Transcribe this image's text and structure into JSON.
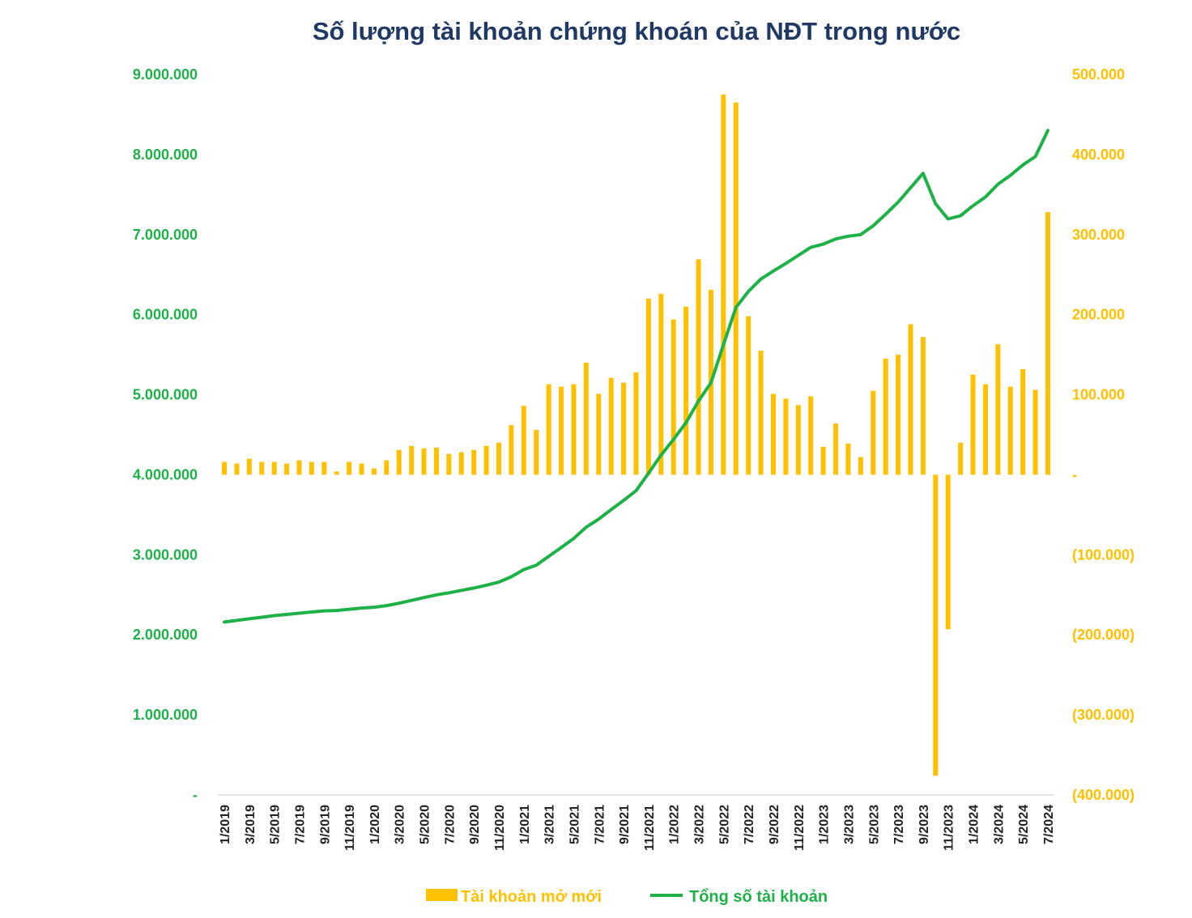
{
  "chart_data": {
    "type": "bar+line",
    "title": "Số lượng tài khoản chứng khoán của NĐT trong nước",
    "colors": {
      "title": "#1f3864",
      "line": "#1db148",
      "bar": "#ffc000"
    },
    "months": [
      "1/2019",
      "2/2019",
      "3/2019",
      "4/2019",
      "5/2019",
      "6/2019",
      "7/2019",
      "8/2019",
      "9/2019",
      "10/2019",
      "11/2019",
      "12/2019",
      "1/2020",
      "2/2020",
      "3/2020",
      "4/2020",
      "5/2020",
      "6/2020",
      "7/2020",
      "8/2020",
      "9/2020",
      "10/2020",
      "11/2020",
      "12/2020",
      "1/2021",
      "2/2021",
      "3/2021",
      "4/2021",
      "5/2021",
      "6/2021",
      "7/2021",
      "8/2021",
      "9/2021",
      "10/2021",
      "11/2021",
      "12/2021",
      "1/2022",
      "2/2022",
      "3/2022",
      "4/2022",
      "5/2022",
      "6/2022",
      "7/2022",
      "8/2022",
      "9/2022",
      "10/2022",
      "11/2022",
      "12/2022",
      "1/2023",
      "2/2023",
      "3/2023",
      "4/2023",
      "5/2023",
      "6/2023",
      "7/2023",
      "8/2023",
      "9/2023",
      "10/2023",
      "11/2023",
      "12/2023",
      "1/2024",
      "2/2024",
      "3/2024",
      "4/2024",
      "5/2024",
      "6/2024",
      "7/2024"
    ],
    "xtick_labels": [
      "1/2019",
      "3/2019",
      "5/2019",
      "7/2019",
      "9/2019",
      "11/2019",
      "1/2020",
      "3/2020",
      "5/2020",
      "7/2020",
      "9/2020",
      "11/2020",
      "1/2021",
      "3/2021",
      "5/2021",
      "7/2021",
      "9/2021",
      "11/2021",
      "1/2022",
      "3/2022",
      "5/2022",
      "7/2022",
      "9/2022",
      "11/2022",
      "1/2023",
      "3/2023",
      "5/2023",
      "7/2023",
      "9/2023",
      "11/2023",
      "1/2024",
      "3/2024",
      "5/2024",
      "7/2024"
    ],
    "series": [
      {
        "name": "Tài khoản mở mới",
        "kind": "bar",
        "axis": "right",
        "values": [
          16000,
          14000,
          20000,
          16000,
          16000,
          14000,
          18000,
          16000,
          16000,
          4000,
          16000,
          14000,
          8000,
          18000,
          31000,
          36000,
          33000,
          34000,
          26000,
          28000,
          31000,
          36000,
          40000,
          62000,
          86000,
          56000,
          113000,
          110000,
          113000,
          140000,
          101000,
          121000,
          115000,
          128000,
          220000,
          226000,
          194000,
          210000,
          269000,
          231000,
          475000,
          465000,
          198000,
          155000,
          101000,
          95000,
          87000,
          98000,
          35000,
          64000,
          39000,
          22000,
          105000,
          145000,
          150000,
          188000,
          172000,
          -376000,
          -193000,
          40000,
          125000,
          113000,
          163000,
          110000,
          132000,
          106000,
          328000
        ]
      },
      {
        "name": "Tổng số tài khoản",
        "kind": "line",
        "axis": "left",
        "values": [
          2160000,
          2180000,
          2200000,
          2220000,
          2240000,
          2255000,
          2270000,
          2285000,
          2300000,
          2305000,
          2320000,
          2335000,
          2345000,
          2365000,
          2395000,
          2430000,
          2465000,
          2500000,
          2525000,
          2555000,
          2585000,
          2620000,
          2660000,
          2725000,
          2815000,
          2870000,
          2980000,
          3090000,
          3205000,
          3345000,
          3445000,
          3565000,
          3680000,
          3800000,
          4020000,
          4245000,
          4440000,
          4650000,
          4920000,
          5150000,
          5625000,
          6090000,
          6290000,
          6445000,
          6545000,
          6640000,
          6740000,
          6840000,
          6880000,
          6945000,
          6980000,
          7000000,
          7110000,
          7255000,
          7405000,
          7585000,
          7765000,
          7385000,
          7195000,
          7235000,
          7360000,
          7470000,
          7630000,
          7740000,
          7870000,
          7975000,
          8300000
        ]
      }
    ],
    "left_axis": {
      "ylim": [
        0,
        9000000
      ],
      "tick_labels": [
        "-",
        "1.000.000",
        "2.000.000",
        "3.000.000",
        "4.000.000",
        "5.000.000",
        "6.000.000",
        "7.000.000",
        "8.000.000",
        "9.000.000"
      ]
    },
    "right_axis": {
      "ylim": [
        -400000,
        500000
      ],
      "tick_labels": [
        "(400.000)",
        "(300.000)",
        "(200.000)",
        "(100.000)",
        "-",
        "100.000",
        "200.000",
        "300.000",
        "400.000",
        "500.000"
      ]
    },
    "legend": [
      {
        "label": "Tài khoản mở mới",
        "kind": "bar"
      },
      {
        "label": "Tổng số tài khoản",
        "kind": "line"
      }
    ],
    "legend_position": "bottom"
  }
}
